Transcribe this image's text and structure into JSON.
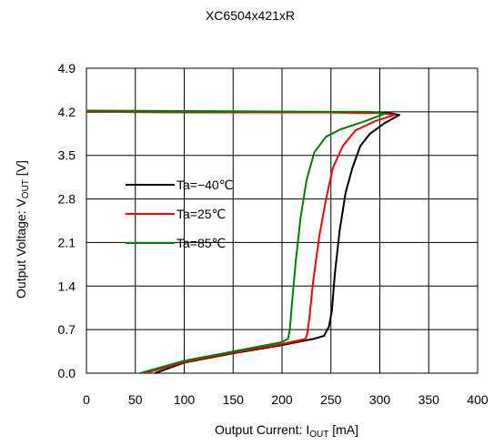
{
  "chart_data": {
    "type": "line",
    "title": "XC6504x421xR",
    "xlabel": "Output Current: IOUT [mA]",
    "xlabel_parts": {
      "main": "Output Current: I",
      "sub": "OUT",
      "unit": " [mA]"
    },
    "ylabel": "Output Voltage: VOUT [V]",
    "ylabel_parts": {
      "main": "Output Voltage: V",
      "sub": "OUT",
      "unit": " [V]"
    },
    "xlim": [
      0,
      400
    ],
    "ylim": [
      0.0,
      4.9
    ],
    "xticks": [
      0,
      50,
      100,
      150,
      200,
      250,
      300,
      350,
      400
    ],
    "yticks": [
      0.0,
      0.7,
      1.4,
      2.1,
      2.8,
      3.5,
      4.2,
      4.9
    ],
    "xtick_labels": [
      "0",
      "50",
      "100",
      "150",
      "200",
      "250",
      "300",
      "350",
      "400"
    ],
    "ytick_labels": [
      "0.0",
      "0.7",
      "1.4",
      "2.1",
      "2.8",
      "3.5",
      "4.2",
      "4.9"
    ],
    "grid": true,
    "legend_position": "left-middle",
    "series": [
      {
        "name": "Ta=−40℃",
        "color": "#000000",
        "points": [
          [
            0,
            4.2
          ],
          [
            150,
            4.19
          ],
          [
            250,
            4.19
          ],
          [
            310,
            4.18
          ],
          [
            320,
            4.15
          ],
          [
            305,
            4.02
          ],
          [
            290,
            3.85
          ],
          [
            280,
            3.65
          ],
          [
            272,
            3.3
          ],
          [
            265,
            2.9
          ],
          [
            259,
            2.3
          ],
          [
            254,
            1.6
          ],
          [
            251,
            1.0
          ],
          [
            248,
            0.75
          ],
          [
            243,
            0.6
          ],
          [
            232,
            0.55
          ],
          [
            200,
            0.45
          ],
          [
            150,
            0.32
          ],
          [
            100,
            0.17
          ],
          [
            70,
            0.0
          ]
        ]
      },
      {
        "name": "Ta=25℃",
        "color": "#ff0000",
        "points": [
          [
            0,
            4.2
          ],
          [
            150,
            4.19
          ],
          [
            250,
            4.19
          ],
          [
            300,
            4.18
          ],
          [
            315,
            4.15
          ],
          [
            295,
            4.05
          ],
          [
            275,
            3.9
          ],
          [
            262,
            3.65
          ],
          [
            252,
            3.3
          ],
          [
            245,
            2.8
          ],
          [
            238,
            2.2
          ],
          [
            232,
            1.5
          ],
          [
            228,
            0.9
          ],
          [
            226,
            0.65
          ],
          [
            224,
            0.55
          ],
          [
            200,
            0.47
          ],
          [
            150,
            0.33
          ],
          [
            100,
            0.18
          ],
          [
            60,
            0.0
          ]
        ]
      },
      {
        "name": "Ta=85℃",
        "color": "#008000",
        "points": [
          [
            0,
            4.22
          ],
          [
            150,
            4.21
          ],
          [
            250,
            4.2
          ],
          [
            290,
            4.2
          ],
          [
            305,
            4.17
          ],
          [
            285,
            4.05
          ],
          [
            260,
            3.92
          ],
          [
            245,
            3.8
          ],
          [
            233,
            3.55
          ],
          [
            225,
            3.1
          ],
          [
            219,
            2.5
          ],
          [
            214,
            1.8
          ],
          [
            210,
            1.1
          ],
          [
            208,
            0.7
          ],
          [
            206,
            0.55
          ],
          [
            200,
            0.5
          ],
          [
            150,
            0.35
          ],
          [
            100,
            0.2
          ],
          [
            55,
            0.0
          ]
        ]
      }
    ]
  }
}
